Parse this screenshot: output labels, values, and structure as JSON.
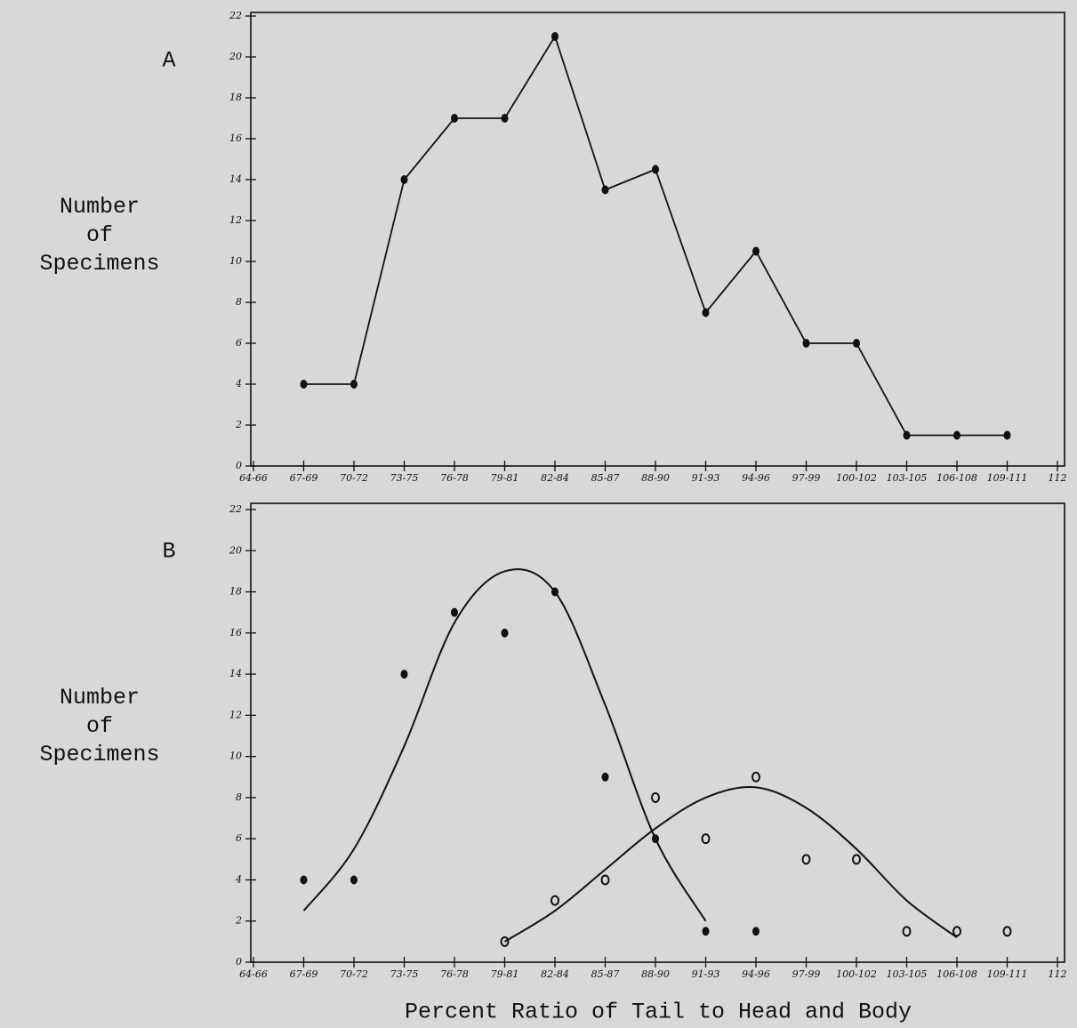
{
  "chart_data": [
    {
      "type": "line",
      "panel": "A",
      "y_label": "Number of Specimens",
      "categories": [
        "64-66",
        "67-69",
        "70-72",
        "73-75",
        "76-78",
        "79-81",
        "82-84",
        "85-87",
        "88-90",
        "91-93",
        "94-96",
        "97-99",
        "100-102",
        "103-105",
        "106-108",
        "109-111",
        "112"
      ],
      "ylim": [
        0,
        22
      ],
      "yticks": [
        0,
        2,
        4,
        6,
        8,
        10,
        12,
        14,
        16,
        18,
        20,
        22
      ],
      "series": [
        {
          "color": "#111111",
          "marker": "filled",
          "values": [
            null,
            4,
            4,
            14,
            17,
            17,
            21,
            13.5,
            14.5,
            7.5,
            10.5,
            6,
            6,
            1.5,
            1.5,
            1.5,
            null
          ]
        }
      ]
    },
    {
      "type": "scatter",
      "panel": "B",
      "y_label": "Number of Specimens",
      "x_label": "Percent Ratio of Tail to Head and Body",
      "categories": [
        "64-66",
        "67-69",
        "70-72",
        "73-75",
        "76-78",
        "79-81",
        "82-84",
        "85-87",
        "88-90",
        "91-93",
        "94-96",
        "97-99",
        "100-102",
        "103-105",
        "106-108",
        "109-111",
        "112"
      ],
      "ylim": [
        0,
        22
      ],
      "yticks": [
        0,
        2,
        4,
        6,
        8,
        10,
        12,
        14,
        16,
        18,
        20,
        22
      ],
      "series": [
        {
          "color": "#111111",
          "marker": "filled",
          "values": [
            null,
            4,
            4,
            14,
            17,
            16,
            18,
            9,
            6,
            1.5,
            1.5,
            null,
            null,
            null,
            null,
            null,
            null
          ]
        },
        {
          "color": "#111111",
          "marker": "open",
          "values": [
            null,
            null,
            null,
            null,
            null,
            1,
            3,
            4,
            8,
            6,
            9,
            5,
            5,
            1.5,
            1.5,
            1.5,
            null
          ]
        },
        {
          "color": "#111111",
          "marker": "curve",
          "values": [
            null,
            2.5,
            5.5,
            10.5,
            16.5,
            19,
            18,
            12.5,
            6,
            2,
            null,
            null,
            null,
            null,
            null,
            null,
            null
          ]
        },
        {
          "color": "#111111",
          "marker": "curve",
          "values": [
            null,
            null,
            null,
            null,
            null,
            1,
            2.5,
            4.5,
            6.5,
            8,
            8.5,
            7.5,
            5.5,
            3,
            1.2,
            null,
            null
          ]
        }
      ]
    }
  ]
}
